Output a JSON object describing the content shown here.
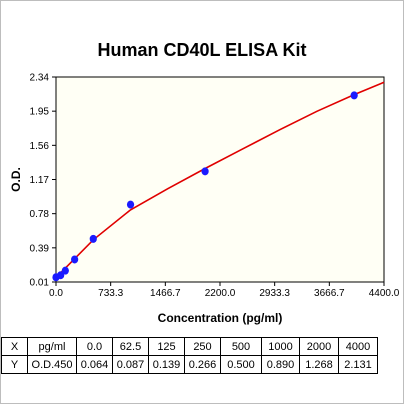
{
  "chart_data": {
    "type": "scatter",
    "title": "Human CD40L ELISA Kit",
    "xlabel": "Concentration (pg/ml)",
    "ylabel": "O.D.",
    "xlim": [
      0,
      4400
    ],
    "ylim": [
      0.01,
      2.34
    ],
    "x_ticks": [
      "0.0",
      "733.3",
      "1466.7",
      "2200.0",
      "2933.3",
      "3666.7",
      "4400.0"
    ],
    "y_ticks": [
      "0.01",
      "0.39",
      "0.78",
      "1.17",
      "1.56",
      "1.95",
      "2.34"
    ],
    "points": {
      "x": [
        0,
        62.5,
        125,
        250,
        500,
        1000,
        2000,
        4000
      ],
      "y": [
        0.064,
        0.087,
        0.139,
        0.266,
        0.5,
        0.89,
        1.268,
        2.131
      ]
    },
    "fit_curve": {
      "x": [
        0,
        500,
        1000,
        1500,
        2000,
        2500,
        3000,
        3500,
        4000,
        4400
      ],
      "y": [
        0.06,
        0.49,
        0.83,
        1.07,
        1.3,
        1.52,
        1.74,
        1.95,
        2.14,
        2.28
      ]
    },
    "grid": false,
    "colors": {
      "points": "#1a1aff",
      "curve": "#e00000",
      "background": "#fffff5"
    }
  },
  "table": {
    "rows": [
      [
        "X",
        "pg/ml",
        "0.0",
        "62.5",
        "125",
        "250",
        "500",
        "1000",
        "2000",
        "4000"
      ],
      [
        "Y",
        "O.D.450",
        "0.064",
        "0.087",
        "0.139",
        "0.266",
        "0.500",
        "0.890",
        "1.268",
        "2.131"
      ]
    ]
  }
}
